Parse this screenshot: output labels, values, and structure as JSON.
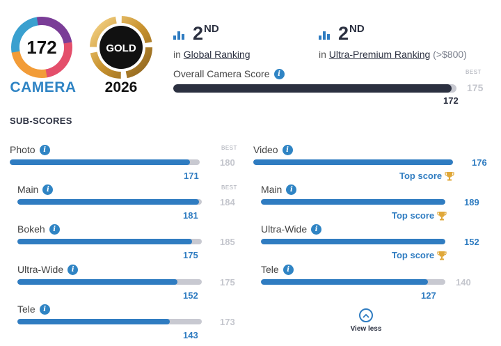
{
  "badges": {
    "score": "172",
    "category": "CAMERA",
    "medal": "GOLD",
    "year": "2026"
  },
  "rankings": [
    {
      "position": "2",
      "suffix": "ND",
      "prefix": "in",
      "link": "Global Ranking",
      "note": ""
    },
    {
      "position": "2",
      "suffix": "ND",
      "prefix": "in",
      "link": "Ultra-Premium Ranking",
      "note": "(>$800)"
    }
  ],
  "overall": {
    "label": "Overall Camera Score",
    "info_icon": "info-icon",
    "best_label": "BEST",
    "best_value": "175",
    "value": "172",
    "fill_fraction": 0.983
  },
  "subscores_title": "SUB-SCORES",
  "left_column": [
    {
      "label": "Photo",
      "value": "171",
      "best": "180",
      "best_label": "BEST",
      "fill": 0.95,
      "indent": false
    },
    {
      "label": "Main",
      "value": "181",
      "best": "184",
      "best_label": "BEST",
      "fill": 0.984,
      "indent": true
    },
    {
      "label": "Bokeh",
      "value": "175",
      "best": "185",
      "best_label": "",
      "fill": 0.946,
      "indent": true
    },
    {
      "label": "Ultra-Wide",
      "value": "152",
      "best": "175",
      "best_label": "",
      "fill": 0.869,
      "indent": true
    },
    {
      "label": "Tele",
      "value": "143",
      "best": "173",
      "best_label": "",
      "fill": 0.827,
      "indent": true
    }
  ],
  "right_column": [
    {
      "label": "Video",
      "value": "176",
      "best": "",
      "top_score": "Top score",
      "fill": 1.0,
      "indent": false
    },
    {
      "label": "Main",
      "value": "189",
      "best": "",
      "top_score": "Top score",
      "fill": 1.0,
      "indent": true
    },
    {
      "label": "Ultra-Wide",
      "value": "152",
      "best": "",
      "top_score": "Top score",
      "fill": 1.0,
      "indent": true
    },
    {
      "label": "Tele",
      "value": "127",
      "best": "140",
      "top_score": "",
      "fill": 0.907,
      "indent": true
    }
  ],
  "view_less": "View less",
  "colors": {
    "accent": "#2f7cc1",
    "dark": "#2b3040",
    "track": "#c8c9d1",
    "gold": "#e0a83a"
  }
}
